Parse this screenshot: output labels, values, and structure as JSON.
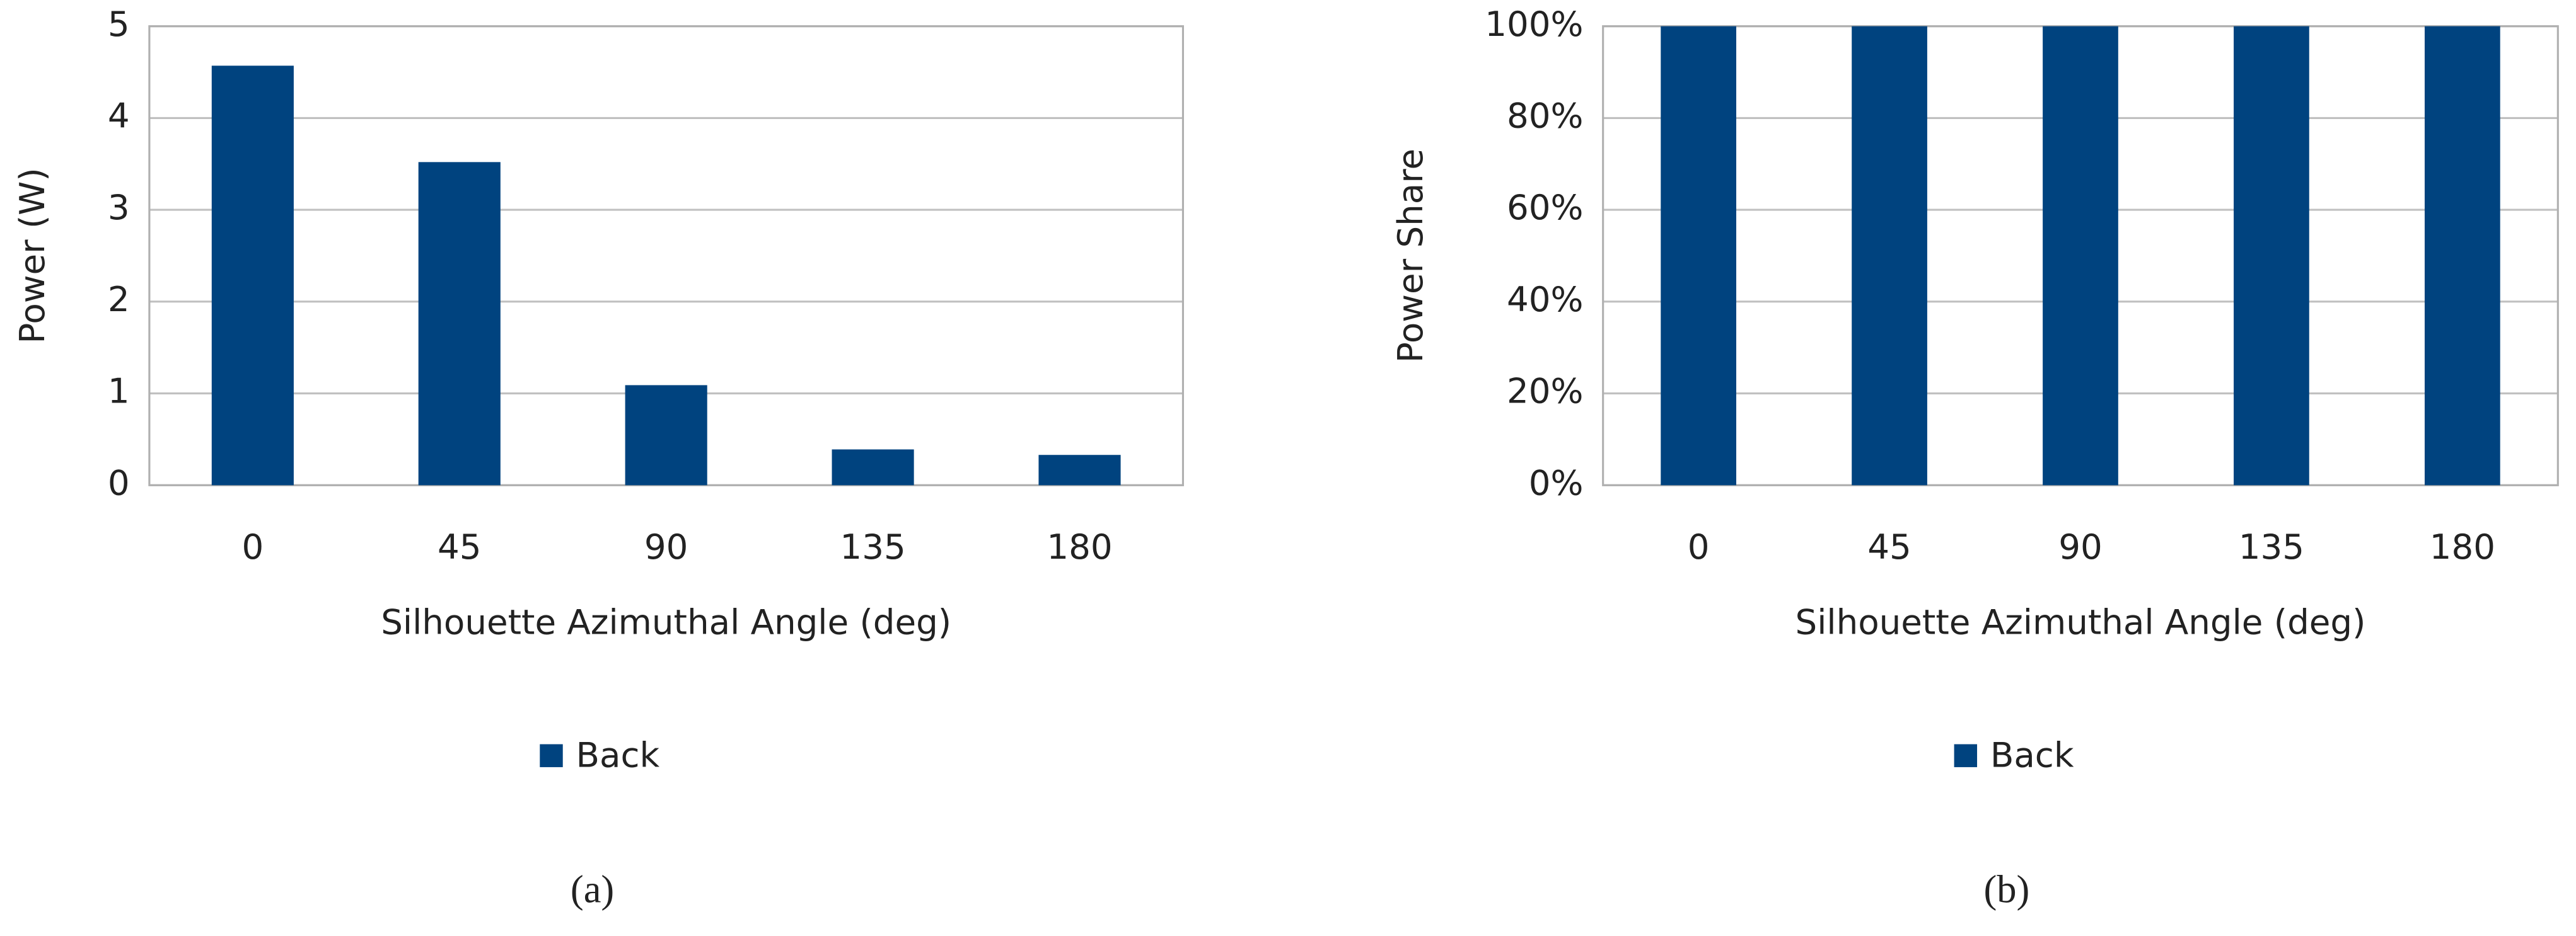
{
  "chart_data": [
    {
      "type": "bar",
      "panel_label": "(a)",
      "x_label": "Silhouette Azimuthal Angle (deg)",
      "y_label": "Power (W)",
      "categories": [
        "0",
        "45",
        "90",
        "135",
        "180"
      ],
      "series": [
        {
          "name": "Back",
          "color": "#00437f",
          "values": [
            4.57,
            3.52,
            1.09,
            0.39,
            0.33
          ]
        }
      ],
      "ylim": [
        0,
        5
      ],
      "yticks": [
        0,
        1,
        2,
        3,
        4,
        5
      ],
      "grid": true,
      "legend": "bottom"
    },
    {
      "type": "bar",
      "panel_label": "(b)",
      "x_label": "Silhouette Azimuthal Angle (deg)",
      "y_label": "Power Share",
      "categories": [
        "0",
        "45",
        "90",
        "135",
        "180"
      ],
      "series": [
        {
          "name": "Back",
          "color": "#00437f",
          "values": [
            100,
            100,
            100,
            100,
            100
          ]
        }
      ],
      "ylim": [
        0,
        100
      ],
      "yticks": [
        {
          "value": 0,
          "label": "0%"
        },
        {
          "value": 20,
          "label": "20%"
        },
        {
          "value": 40,
          "label": "40%"
        },
        {
          "value": 60,
          "label": "60%"
        },
        {
          "value": 80,
          "label": "80%"
        },
        {
          "value": 100,
          "label": "100%"
        }
      ],
      "grid": true,
      "legend": "bottom"
    }
  ]
}
